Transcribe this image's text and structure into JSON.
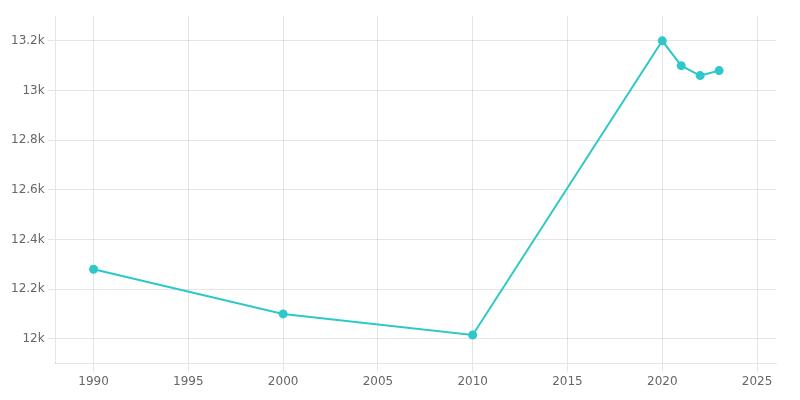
{
  "chart_data": {
    "type": "line",
    "x": [
      1990,
      2000,
      2010,
      2020,
      2021,
      2022,
      2023
    ],
    "values": [
      12280,
      12100,
      12015,
      13200,
      13100,
      13060,
      13080
    ],
    "color": "#2ec8c8",
    "marker": "o",
    "xlim": [
      1988,
      2026
    ],
    "ylim": [
      11900,
      13300
    ],
    "xticks": [
      1990,
      1995,
      2000,
      2005,
      2010,
      2015,
      2020,
      2025
    ],
    "yticks": [
      {
        "value": 12000,
        "label": "12k"
      },
      {
        "value": 12200,
        "label": "12.2k"
      },
      {
        "value": 12400,
        "label": "12.4k"
      },
      {
        "value": 12600,
        "label": "12.6k"
      },
      {
        "value": 12800,
        "label": "12.8k"
      },
      {
        "value": 13000,
        "label": "13k"
      },
      {
        "value": 13200,
        "label": "13.2k"
      }
    ],
    "grid": true
  }
}
